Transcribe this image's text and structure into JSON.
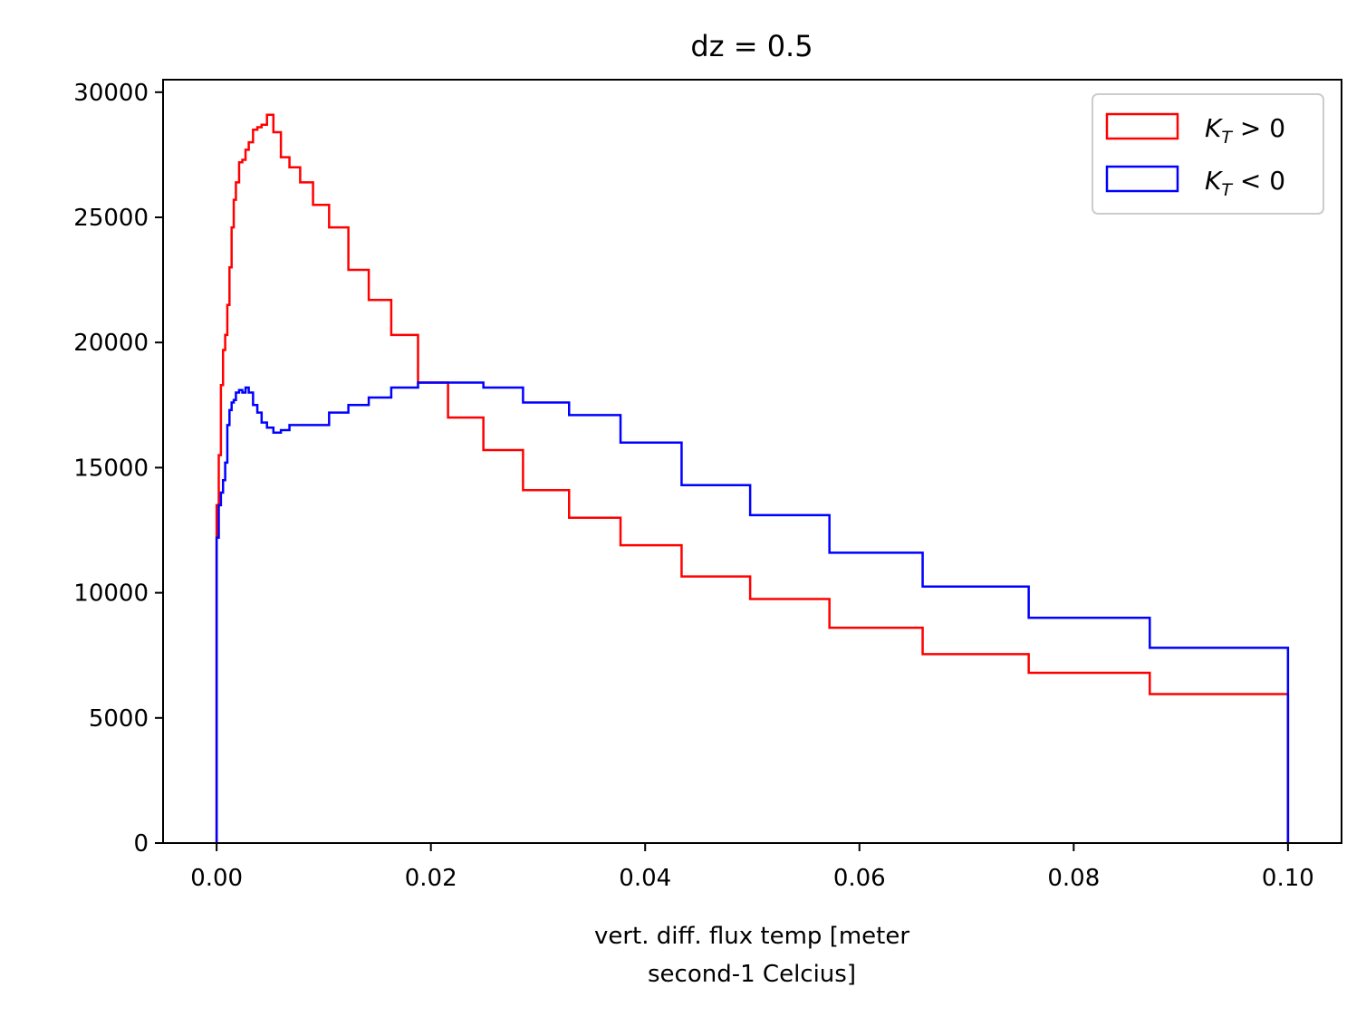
{
  "chart_data": {
    "type": "histogram-step",
    "title": "dz = 0.5",
    "xlabel_line1": "vert. diff. flux temp [meter",
    "xlabel_line2": "second-1 Celcius]",
    "ylabel": "",
    "xlim": [
      -0.005,
      0.105
    ],
    "ylim": [
      0,
      30500
    ],
    "xticks": [
      0.0,
      0.02,
      0.04,
      0.06,
      0.08,
      0.1
    ],
    "xtick_labels": [
      "0.00",
      "0.02",
      "0.04",
      "0.06",
      "0.08",
      "0.10"
    ],
    "yticks": [
      0,
      5000,
      10000,
      15000,
      20000,
      25000,
      30000
    ],
    "ytick_labels": [
      "0",
      "5000",
      "10000",
      "15000",
      "20000",
      "25000",
      "30000"
    ],
    "legend_position": "top-right",
    "series": [
      {
        "name": "K_T > 0",
        "legend_sub": "T",
        "legend_rest": " > 0",
        "color": "#ff0000",
        "edges": [
          0,
          0.0002,
          0.0004,
          0.0006,
          0.0008,
          0.001,
          0.0012,
          0.0014,
          0.0016,
          0.0018,
          0.0021,
          0.0024,
          0.0027,
          0.003,
          0.0034,
          0.0038,
          0.0042,
          0.0047,
          0.0053,
          0.006,
          0.0068,
          0.0078,
          0.009,
          0.0105,
          0.0123,
          0.0142,
          0.0163,
          0.0188,
          0.0216,
          0.0249,
          0.0286,
          0.0329,
          0.0377,
          0.0434,
          0.0498,
          0.0572,
          0.0659,
          0.0758,
          0.0871,
          0.1
        ],
        "counts": [
          13500,
          15500,
          18300,
          19700,
          20300,
          21500,
          23000,
          24600,
          25700,
          26400,
          27200,
          27300,
          27700,
          28000,
          28500,
          28600,
          28700,
          29100,
          28400,
          27400,
          27000,
          26400,
          25500,
          24600,
          22900,
          21700,
          20300,
          18400,
          17000,
          15700,
          14100,
          13000,
          11900,
          10650,
          9750,
          8600,
          7550,
          6800,
          5950
        ]
      },
      {
        "name": "K_T < 0",
        "legend_sub": "T",
        "legend_rest": " < 0",
        "color": "#0000ff",
        "edges": [
          0,
          0.0002,
          0.0004,
          0.0006,
          0.0008,
          0.001,
          0.0012,
          0.0014,
          0.0016,
          0.0018,
          0.0021,
          0.0024,
          0.0027,
          0.003,
          0.0034,
          0.0038,
          0.0042,
          0.0047,
          0.0053,
          0.006,
          0.0068,
          0.0078,
          0.009,
          0.0105,
          0.0123,
          0.0142,
          0.0163,
          0.0188,
          0.0216,
          0.0249,
          0.0286,
          0.0329,
          0.0377,
          0.0434,
          0.0498,
          0.0572,
          0.0659,
          0.0758,
          0.0871,
          0.1
        ],
        "counts": [
          12200,
          13500,
          14000,
          14500,
          15200,
          16700,
          17300,
          17600,
          17700,
          18000,
          18100,
          18000,
          18200,
          18000,
          17500,
          17200,
          16800,
          16600,
          16400,
          16500,
          16700,
          16700,
          16700,
          17200,
          17500,
          17800,
          18200,
          18400,
          18400,
          18200,
          17600,
          17100,
          16000,
          14300,
          13100,
          11600,
          10250,
          9000,
          7800
        ]
      }
    ]
  }
}
